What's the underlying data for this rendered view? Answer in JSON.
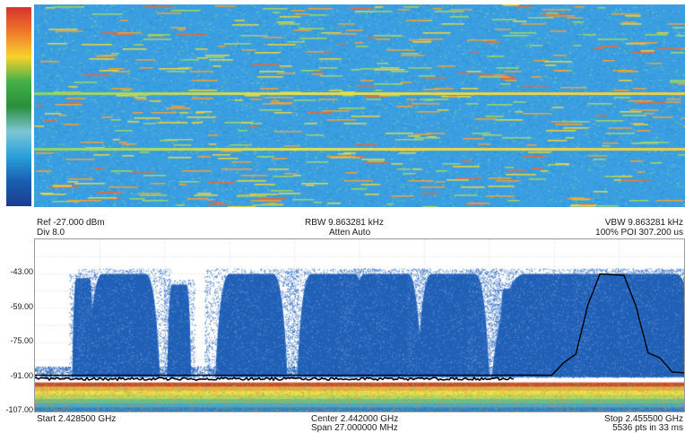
{
  "header": {
    "ref": "Ref -27.000 dBm",
    "div": "Div 8.0",
    "rbw": "RBW 9.863281 kHz",
    "atten": "Atten Auto",
    "vbw": "VBW 9.863281 kHz",
    "poi": "100% POI 307.200 us"
  },
  "footer": {
    "start": "Start 2.428500 GHz",
    "center": "Center 2.442000 GHz",
    "span": "Span 27.000000 MHz",
    "stop": "Stop 2.455500 GHz",
    "points": "5536 pts in 33 ms"
  },
  "colors": {
    "waterfall_bg": "#3a9fe0",
    "trace_fill": "#1f5fb5",
    "trace_line": "#000000",
    "grid": "#b8b8b8"
  },
  "colorbar": [
    "#d6332b",
    "#f07a2a",
    "#f8d22e",
    "#44b04a",
    "#2a8f3c",
    "#7ec6d6",
    "#2aa0dc",
    "#1a5fb0",
    "#1f3c8f"
  ],
  "chart_data": {
    "type": "area",
    "xlabel": "",
    "ylabel": "",
    "x_range": [
      2.4285,
      2.4555
    ],
    "x_unit": "GHz",
    "yticks": [
      "-43.00",
      "-59.00",
      "-75.00",
      "-91.00",
      "-107.00"
    ],
    "ylim": [
      -107,
      -27
    ],
    "grid": true,
    "noise_floor": -91,
    "bursts": [
      {
        "center": 2.4305,
        "width": 0.0009,
        "level": -45
      },
      {
        "center": 2.4322,
        "width": 0.003,
        "level": -43
      },
      {
        "center": 2.4345,
        "width": 0.001,
        "level": -48
      },
      {
        "center": 2.4375,
        "width": 0.003,
        "level": -43
      },
      {
        "center": 2.4409,
        "width": 0.003,
        "level": -43
      },
      {
        "center": 2.4431,
        "width": 0.003,
        "level": -43
      },
      {
        "center": 2.4459,
        "width": 0.003,
        "level": -43
      },
      {
        "center": 2.4483,
        "width": 0.001,
        "level": -50
      },
      {
        "center": 2.451,
        "width": 0.007,
        "level": -43
      },
      {
        "center": 2.4538,
        "width": 0.0045,
        "level": -43
      }
    ],
    "max_hold": [
      {
        "x": 2.4285,
        "y": -90
      },
      {
        "x": 2.45,
        "y": -90
      },
      {
        "x": 2.4505,
        "y": -84
      },
      {
        "x": 2.451,
        "y": -80
      },
      {
        "x": 2.4515,
        "y": -58
      },
      {
        "x": 2.452,
        "y": -43
      },
      {
        "x": 2.453,
        "y": -43
      },
      {
        "x": 2.4535,
        "y": -58
      },
      {
        "x": 2.454,
        "y": -80
      },
      {
        "x": 2.4545,
        "y": -82
      },
      {
        "x": 2.455,
        "y": -89
      },
      {
        "x": 2.4555,
        "y": -89
      }
    ]
  }
}
